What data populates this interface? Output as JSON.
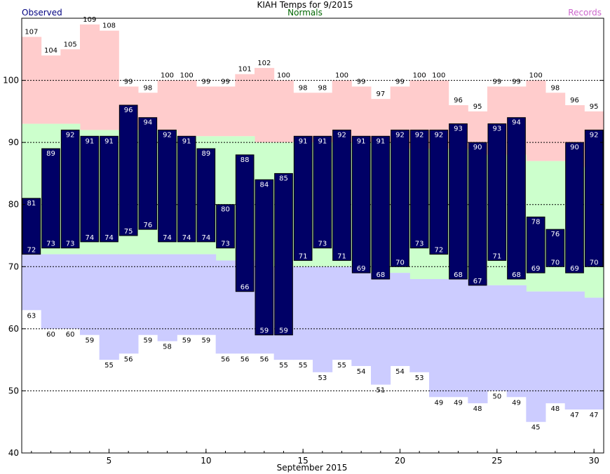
{
  "chart_data": {
    "type": "bar",
    "title": "KIAH Temps for 9/2015",
    "xlabel": "September 2015",
    "ylabel": "",
    "ylim": [
      40,
      110
    ],
    "xlim": [
      0.5,
      30.5
    ],
    "legend": {
      "observed": "Observed",
      "normals": "Normals",
      "records": "Records"
    },
    "y_ticks": [
      40,
      50,
      60,
      70,
      80,
      90,
      100
    ],
    "x_ticks": [
      5,
      10,
      15,
      20,
      25,
      30
    ],
    "grid": "dashed horizontal at 50, 60, 70, 80, 90, 100",
    "days": [
      1,
      2,
      3,
      4,
      5,
      6,
      7,
      8,
      9,
      10,
      11,
      12,
      13,
      14,
      15,
      16,
      17,
      18,
      19,
      20,
      21,
      22,
      23,
      24,
      25,
      26,
      27,
      28,
      29,
      30
    ],
    "series": [
      {
        "name": "Observed High",
        "values": [
          81,
          89,
          92,
          91,
          91,
          96,
          94,
          92,
          91,
          89,
          80,
          88,
          84,
          85,
          91,
          91,
          92,
          91,
          91,
          92,
          92,
          92,
          93,
          90,
          93,
          94,
          78,
          76,
          90,
          92
        ]
      },
      {
        "name": "Observed Low",
        "values": [
          72,
          73,
          73,
          74,
          74,
          75,
          76,
          74,
          74,
          74,
          73,
          66,
          59,
          59,
          71,
          73,
          71,
          69,
          68,
          70,
          73,
          72,
          68,
          67,
          71,
          68,
          69,
          70,
          69,
          70
        ]
      },
      {
        "name": "Record High",
        "values": [
          107,
          104,
          105,
          109,
          108,
          99,
          98,
          100,
          100,
          99,
          99,
          101,
          102,
          100,
          98,
          98,
          100,
          99,
          97,
          99,
          100,
          100,
          96,
          95,
          99,
          99,
          100,
          98,
          96,
          95
        ]
      },
      {
        "name": "Record Low",
        "values": [
          63,
          60,
          60,
          59,
          55,
          56,
          59,
          58,
          59,
          59,
          56,
          56,
          56,
          55,
          55,
          53,
          55,
          54,
          51,
          54,
          53,
          49,
          49,
          48,
          50,
          49,
          45,
          48,
          47,
          47
        ]
      },
      {
        "name": "Normal High",
        "values": [
          93,
          93,
          93,
          92,
          92,
          92,
          92,
          92,
          91,
          91,
          91,
          91,
          90,
          90,
          90,
          90,
          90,
          90,
          90,
          89,
          89,
          89,
          89,
          88,
          88,
          88,
          87,
          87,
          86,
          86
        ]
      },
      {
        "name": "Normal Low",
        "values": [
          72,
          72,
          72,
          72,
          72,
          72,
          72,
          72,
          72,
          72,
          71,
          71,
          70,
          70,
          70,
          70,
          70,
          69,
          69,
          69,
          68,
          68,
          68,
          68,
          67,
          67,
          66,
          66,
          66,
          65
        ]
      }
    ],
    "colors": {
      "observed": "#000066",
      "record_band": "#ffcccc",
      "normal_band": "#ccffcc",
      "low_band": "#ccccff",
      "legend_observed": "#000080",
      "legend_normals": "#006600",
      "legend_records": "#cc66cc",
      "text": "#000000"
    }
  }
}
